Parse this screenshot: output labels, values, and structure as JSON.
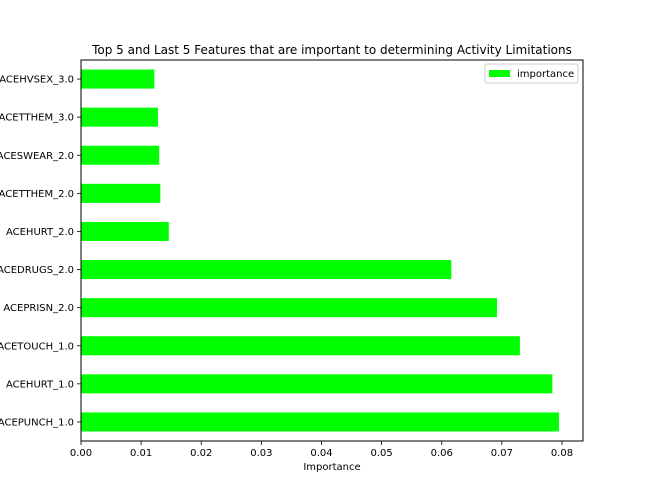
{
  "chart_data": {
    "type": "bar",
    "orientation": "horizontal",
    "title": "Top 5 and Last 5 Features that are important to determining Activity Limitations",
    "xlabel": "Importance",
    "ylabel": "",
    "xlim": [
      0,
      0.0835
    ],
    "xticks": [
      "0.00",
      "0.01",
      "0.02",
      "0.03",
      "0.04",
      "0.05",
      "0.06",
      "0.07",
      "0.08"
    ],
    "xtick_values": [
      0,
      0.01,
      0.02,
      0.03,
      0.04,
      0.05,
      0.06,
      0.07,
      0.08
    ],
    "grid": false,
    "legend_position": "top-right",
    "categories": [
      "ACEPUNCH_1.0",
      "ACEHURT_1.0",
      "ACETOUCH_1.0",
      "ACEPRISN_2.0",
      "ACEDRUGS_2.0",
      "ACEHURT_2.0",
      "ACETTHEM_2.0",
      "ACESWEAR_2.0",
      "ACETTHEM_3.0",
      "ACEHVSEX_3.0"
    ],
    "series": [
      {
        "name": "importance",
        "color": "#00ff00",
        "values": [
          0.0795,
          0.0784,
          0.073,
          0.0692,
          0.0616,
          0.0146,
          0.0132,
          0.013,
          0.0128,
          0.0122
        ]
      }
    ]
  }
}
